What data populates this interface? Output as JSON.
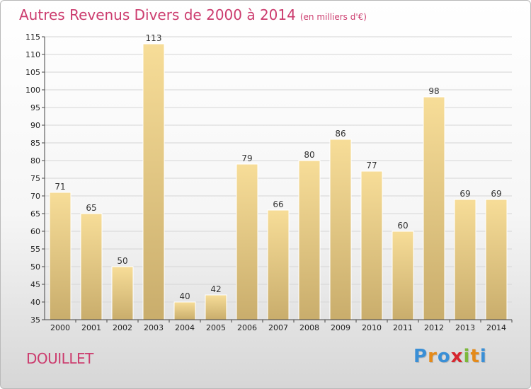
{
  "title": "Autres Revenus Divers de 2000 à 2014",
  "subtitle": "(en milliers d'€)",
  "commune": "DOUILLET",
  "logo": {
    "text": "Proxiti",
    "colors": [
      "#3a8fd6",
      "#e48a1a",
      "#3a8fd6",
      "#d6262e",
      "#7cb83a",
      "#e48a1a",
      "#3a8fd6"
    ]
  },
  "colors": {
    "accent": "#cc3c6e",
    "bar_light": "#f7dd98",
    "bar_dark": "#c9ad6c",
    "grid": "#d5d5d5"
  },
  "chart_data": {
    "type": "bar",
    "title": "Autres Revenus Divers de 2000 à 2014",
    "subtitle": "(en milliers d'€)",
    "xlabel": "",
    "ylabel": "",
    "categories": [
      "2000",
      "2001",
      "2002",
      "2003",
      "2004",
      "2005",
      "2006",
      "2007",
      "2008",
      "2009",
      "2010",
      "2011",
      "2012",
      "2013",
      "2014"
    ],
    "values": [
      71,
      65,
      50,
      113,
      40,
      42,
      79,
      66,
      80,
      86,
      77,
      60,
      98,
      69,
      69
    ],
    "ylim": [
      35,
      115
    ],
    "yticks": [
      35,
      40,
      45,
      50,
      55,
      60,
      65,
      70,
      75,
      80,
      85,
      90,
      95,
      100,
      105,
      110,
      115
    ],
    "grid": true,
    "data_labels": true
  }
}
